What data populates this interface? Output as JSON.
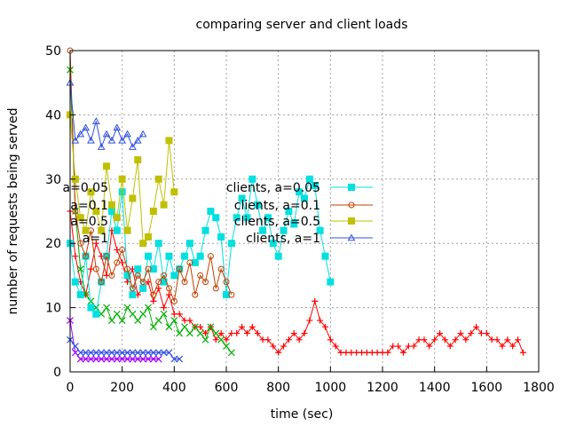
{
  "chart_data": {
    "type": "line",
    "title": "comparing server and client loads",
    "xlabel": "time (sec)",
    "ylabel": "number of requests being served",
    "xlim": [
      0,
      1800
    ],
    "ylim": [
      0,
      50
    ],
    "xticks": [
      0,
      200,
      400,
      600,
      800,
      1000,
      1200,
      1400,
      1600,
      1800
    ],
    "yticks": [
      0,
      10,
      20,
      30,
      40,
      50
    ],
    "grid": true,
    "legend_position": "center",
    "colors": {
      "red": "#ff0000",
      "green": "#00b000",
      "magenta": "#a000ff",
      "cyan": "#00e0e0",
      "brown": "#c04000",
      "olive": "#c0c000",
      "blue": "#3050e0"
    },
    "series": [
      {
        "name": "a=0.05",
        "color": "#ff0000",
        "marker": "plus",
        "x": [
          0,
          20,
          40,
          60,
          80,
          100,
          120,
          140,
          160,
          180,
          200,
          220,
          240,
          260,
          280,
          300,
          320,
          340,
          360,
          380,
          400,
          420,
          440,
          460,
          480,
          500,
          520,
          540,
          560,
          580,
          600,
          620,
          640,
          660,
          680,
          700,
          720,
          740,
          760,
          780,
          800,
          820,
          840,
          860,
          880,
          900,
          920,
          940,
          960,
          980,
          1000,
          1020,
          1040,
          1060,
          1080,
          1100,
          1120,
          1140,
          1160,
          1180,
          1200,
          1220,
          1240,
          1260,
          1280,
          1300,
          1320,
          1340,
          1360,
          1380,
          1400,
          1420,
          1440,
          1460,
          1480,
          1500,
          1520,
          1540,
          1560,
          1580,
          1600,
          1620,
          1640,
          1660,
          1680,
          1700,
          1720,
          1740
        ],
        "y": [
          25,
          18,
          14,
          12,
          16,
          20,
          18,
          15,
          22,
          19,
          17,
          14,
          16,
          12,
          13,
          14,
          11,
          13,
          10,
          12,
          9,
          9,
          8,
          8,
          7,
          7,
          6,
          7,
          5,
          6,
          5,
          6,
          6,
          7,
          6,
          7,
          6,
          5,
          5,
          4,
          3,
          4,
          5,
          6,
          5,
          6,
          8,
          11,
          8,
          7,
          5,
          4,
          3,
          3,
          3,
          3,
          3,
          3,
          3,
          3,
          3,
          3,
          4,
          4,
          3,
          4,
          4,
          5,
          5,
          4,
          5,
          6,
          5,
          4,
          5,
          6,
          5,
          6,
          7,
          6,
          6,
          5,
          5,
          4,
          5,
          4,
          5,
          3
        ]
      },
      {
        "name": "a=0.1",
        "color": "#00b000",
        "marker": "cross",
        "x": [
          0,
          20,
          40,
          60,
          80,
          100,
          120,
          140,
          160,
          180,
          200,
          220,
          240,
          260,
          280,
          300,
          320,
          340,
          360,
          380,
          400,
          420,
          440,
          460,
          480,
          500,
          520,
          540,
          560,
          580,
          600,
          620
        ],
        "y": [
          47,
          25,
          16,
          12,
          11,
          10,
          9,
          10,
          8,
          9,
          8,
          10,
          9,
          8,
          9,
          10,
          7,
          8,
          9,
          7,
          8,
          6,
          7,
          6,
          7,
          6,
          5,
          7,
          6,
          5,
          4,
          3
        ]
      },
      {
        "name": "a=0.5",
        "color": "#a000ff",
        "marker": "cross",
        "x": [
          0,
          20,
          40,
          60,
          80,
          100,
          120,
          140,
          160,
          180,
          200,
          220,
          240,
          260,
          280,
          300,
          320,
          340
        ],
        "y": [
          8,
          3,
          2,
          2,
          2,
          2,
          2,
          2,
          2,
          2,
          2,
          2,
          2,
          2,
          2,
          2,
          2,
          2
        ]
      },
      {
        "name": "a=1",
        "color": "#3050e0",
        "marker": "cross",
        "x": [
          0,
          20,
          40,
          60,
          80,
          100,
          120,
          140,
          160,
          180,
          200,
          220,
          240,
          260,
          280,
          300,
          320,
          340,
          360,
          380,
          400,
          420
        ],
        "y": [
          5,
          4,
          3,
          3,
          3,
          3,
          3,
          3,
          3,
          3,
          3,
          3,
          3,
          3,
          3,
          3,
          3,
          3,
          3,
          3,
          2,
          2
        ]
      },
      {
        "name": "clients, a=0.05",
        "color": "#00e0e0",
        "marker": "square",
        "x": [
          0,
          20,
          40,
          60,
          80,
          100,
          120,
          140,
          160,
          180,
          200,
          220,
          240,
          260,
          280,
          300,
          320,
          340,
          360,
          380,
          400,
          420,
          440,
          460,
          480,
          500,
          520,
          540,
          560,
          580,
          600,
          620,
          640,
          660,
          680,
          700,
          720,
          740,
          760,
          780,
          800,
          820,
          840,
          860,
          880,
          900,
          920,
          940,
          960,
          980,
          1000
        ],
        "y": [
          20,
          14,
          12,
          18,
          10,
          9,
          14,
          18,
          25,
          22,
          28,
          15,
          12,
          16,
          13,
          18,
          16,
          20,
          14,
          18,
          15,
          16,
          18,
          20,
          17,
          18,
          22,
          25,
          24,
          21,
          12,
          20,
          24,
          27,
          24,
          30,
          26,
          22,
          24,
          20,
          18,
          22,
          25,
          23,
          28,
          27,
          30,
          29,
          22,
          18,
          14
        ]
      },
      {
        "name": "clients, a=0.1",
        "color": "#c04000",
        "marker": "circle",
        "x": [
          0,
          20,
          40,
          60,
          80,
          100,
          120,
          140,
          160,
          180,
          200,
          220,
          240,
          260,
          280,
          300,
          320,
          340,
          360,
          380,
          400,
          420,
          440,
          460,
          480,
          500,
          520,
          540,
          560,
          580,
          600,
          620
        ],
        "y": [
          50,
          25,
          20,
          18,
          22,
          16,
          14,
          18,
          15,
          17,
          19,
          16,
          13,
          15,
          14,
          16,
          12,
          14,
          15,
          13,
          11,
          16,
          14,
          17,
          12,
          15,
          14,
          18,
          13,
          16,
          14,
          12
        ]
      },
      {
        "name": "clients, a=0.5",
        "color": "#c0c000",
        "marker": "filled-square",
        "x": [
          0,
          20,
          40,
          60,
          80,
          100,
          120,
          140,
          160,
          180,
          200,
          220,
          240,
          260,
          280,
          300,
          320,
          340,
          360,
          380,
          400
        ],
        "y": [
          40,
          30,
          24,
          22,
          28,
          25,
          22,
          32,
          26,
          24,
          30,
          22,
          27,
          33,
          20,
          21,
          25,
          30,
          26,
          36,
          28
        ]
      },
      {
        "name": "clients, a=1",
        "color": "#3050e0",
        "marker": "triangle",
        "x": [
          0,
          20,
          40,
          60,
          80,
          100,
          120,
          140,
          160,
          180,
          200,
          220,
          240,
          260,
          280
        ],
        "y": [
          45,
          36,
          37,
          38,
          36,
          39,
          35,
          37,
          36,
          38,
          36,
          37,
          35,
          36,
          37
        ]
      }
    ],
    "legend_right": [
      "clients, a=0.05",
      "clients, a=0.1",
      "clients, a=0.5",
      "clients, a=1"
    ],
    "legend_left": [
      "a=0.05",
      "a=0.1",
      "a=0.5",
      "a=1"
    ]
  }
}
